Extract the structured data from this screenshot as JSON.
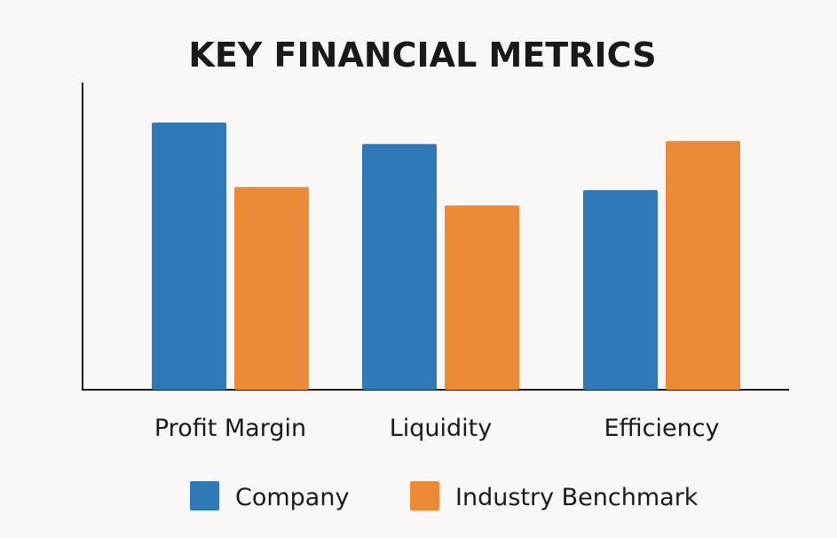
{
  "chart_data": {
    "type": "bar",
    "title": "KEY FINANCIAL METRICS",
    "xlabel": "",
    "ylabel": "",
    "categories": [
      "Profit Margin",
      "Liquidity",
      "Efficiency"
    ],
    "series": [
      {
        "name": "Company",
        "color": "#2f79b9",
        "values": [
          87,
          80,
          65
        ]
      },
      {
        "name": "Industry Benchmark",
        "color": "#ec8a37",
        "values": [
          66,
          60,
          81
        ]
      }
    ],
    "ylim": [
      0,
      100
    ],
    "grid": false,
    "legend_position": "bottom"
  }
}
